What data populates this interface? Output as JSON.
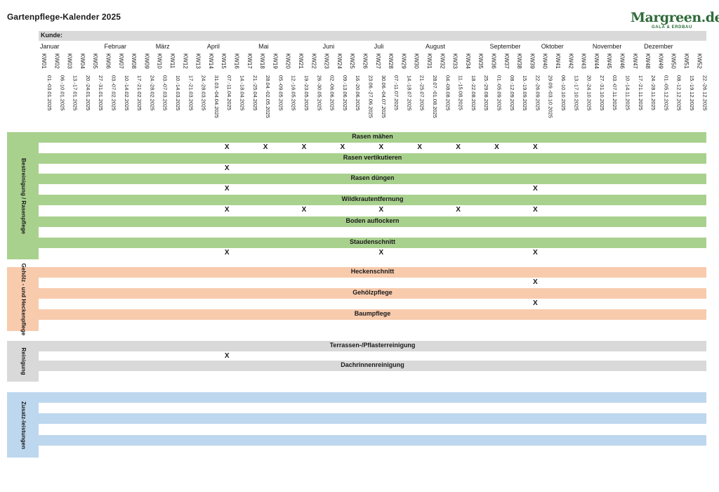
{
  "title": "Gartenpflege-Kalender 2025",
  "logo": {
    "brand": "Margreen.de",
    "tagline": "GALA & ERDBAU",
    "color": "#2f6b3a"
  },
  "kunde_label": "Kunde:",
  "months": [
    "Januar",
    "Februar",
    "März",
    "April",
    "Mai",
    "Juni",
    "Juli",
    "August",
    "September",
    "Oktober",
    "November",
    "Dezember"
  ],
  "weeks": [
    {
      "kw": "KW01",
      "dates": "01.-03.01.2025"
    },
    {
      "kw": "KW02",
      "dates": "06.-10.01.2025"
    },
    {
      "kw": "KW03",
      "dates": "13.-17.01.2025"
    },
    {
      "kw": "KW04",
      "dates": "20.-24.01.2025"
    },
    {
      "kw": "KW05",
      "dates": "27.-31.01.2025"
    },
    {
      "kw": "KW06",
      "dates": "03.-07.02.2025"
    },
    {
      "kw": "KW07",
      "dates": "10.-14.02.2025"
    },
    {
      "kw": "KW08",
      "dates": "17.-21.02.2025"
    },
    {
      "kw": "KW09",
      "dates": "24.-28.02.2025"
    },
    {
      "kw": "KW10",
      "dates": "03.-07.03.2025"
    },
    {
      "kw": "KW11",
      "dates": "10.-14.03.2025"
    },
    {
      "kw": "KW12",
      "dates": "17.-21.03.2025"
    },
    {
      "kw": "KW13",
      "dates": "24.-28.03.2025"
    },
    {
      "kw": "KW14",
      "dates": "31.03.-04.04.2025"
    },
    {
      "kw": "KW15",
      "dates": "07.-11.04.2025"
    },
    {
      "kw": "KW16",
      "dates": "14.-18.04.2025"
    },
    {
      "kw": "KW17",
      "dates": "21.-25.04.2025"
    },
    {
      "kw": "KW18",
      "dates": "28.04.-02.05.2025"
    },
    {
      "kw": "KW19",
      "dates": "05.-09.05.2025"
    },
    {
      "kw": "KW20",
      "dates": "12.-16.05.2025"
    },
    {
      "kw": "KW21",
      "dates": "19.-23.05.2025"
    },
    {
      "kw": "KW22",
      "dates": "26.-30.05.2025"
    },
    {
      "kw": "KW23",
      "dates": "02.-06.06.2025"
    },
    {
      "kw": "KW24",
      "dates": "09.-13.06.2025"
    },
    {
      "kw": "KW25",
      "dates": "16.-20.06.2025"
    },
    {
      "kw": "KW26",
      "dates": "23.06.-27.06.2025"
    },
    {
      "kw": "KW27",
      "dates": "30.06.-04.07.2025"
    },
    {
      "kw": "KW28",
      "dates": "07.-11.07.2025"
    },
    {
      "kw": "KW29",
      "dates": "14.-18.07.2025"
    },
    {
      "kw": "KW30",
      "dates": "21.-25.07.2025"
    },
    {
      "kw": "KW31",
      "dates": "28.07.-01.08.2025"
    },
    {
      "kw": "KW32",
      "dates": "04.-08.08.2025"
    },
    {
      "kw": "KW33",
      "dates": "11.-15.08.2025"
    },
    {
      "kw": "KW34",
      "dates": "18.-22.08.2025"
    },
    {
      "kw": "KW35",
      "dates": "25.-29.08.2025"
    },
    {
      "kw": "KW36",
      "dates": "01.-05.09.2025"
    },
    {
      "kw": "KW37",
      "dates": "08.-12.09.2025"
    },
    {
      "kw": "KW38",
      "dates": "15.-19.09.2025"
    },
    {
      "kw": "KW39",
      "dates": "22.-26.09.2025"
    },
    {
      "kw": "KW40",
      "dates": "29.09.-03.10.2025"
    },
    {
      "kw": "KW41",
      "dates": "06.-10.10.2025"
    },
    {
      "kw": "KW42",
      "dates": "13.-17.10.2025"
    },
    {
      "kw": "KW43",
      "dates": "20.-24.10.2025"
    },
    {
      "kw": "KW44",
      "dates": "27.-31.10.2025"
    },
    {
      "kw": "KW45",
      "dates": "03.-07.11.2025"
    },
    {
      "kw": "KW46",
      "dates": "10.-14.11.2025"
    },
    {
      "kw": "KW47",
      "dates": "17.-21.11.2025"
    },
    {
      "kw": "KW48",
      "dates": "24.-28.11.2025"
    },
    {
      "kw": "KW49",
      "dates": "01.-05.12.2025"
    },
    {
      "kw": "KW50",
      "dates": "08.-12.12.2025"
    },
    {
      "kw": "KW51",
      "dates": "15.-19.12.2025"
    },
    {
      "kw": "KW52",
      "dates": "22.-26.12.2025"
    }
  ],
  "mark_symbol": "X",
  "sections": [
    {
      "label": "Bestreinigung / Rasenpflege",
      "color": "#a9d18e",
      "tasks": [
        {
          "name": "Rasen mähen",
          "weeks": [
            "KW15",
            "KW18",
            "KW21",
            "KW24",
            "KW27",
            "KW30",
            "KW33",
            "KW36",
            "KW39"
          ]
        },
        {
          "name": "Rasen vertikutieren",
          "weeks": [
            "KW15"
          ]
        },
        {
          "name": "Rasen düngen",
          "weeks": [
            "KW15",
            "KW39"
          ]
        },
        {
          "name": "Wildkrautentfernung",
          "weeks": [
            "KW15",
            "KW21",
            "KW27",
            "KW33",
            "KW39"
          ]
        },
        {
          "name": "Boden auflockern",
          "weeks": []
        },
        {
          "name": "Staudenschnitt",
          "weeks": [
            "KW15",
            "KW27",
            "KW39"
          ]
        }
      ]
    },
    {
      "label": "Gehölz - und Heckenpflege",
      "color": "#f8cbad",
      "tasks": [
        {
          "name": "Heckenschnitt",
          "weeks": [
            "KW39"
          ]
        },
        {
          "name": "Gehölzpflege",
          "weeks": [
            "KW39"
          ]
        },
        {
          "name": "Baumpflege",
          "weeks": []
        }
      ]
    },
    {
      "label": "Reinigung",
      "color": "#d9d9d9",
      "tasks": [
        {
          "name": "Terrassen-/Pflasterreinigung",
          "weeks": [
            "KW15"
          ]
        },
        {
          "name": "Dachrinnenreinigung",
          "weeks": []
        }
      ]
    },
    {
      "label": "Zusatz-leistungen",
      "color": "#bdd7ee",
      "tasks": [
        {
          "name": "",
          "weeks": []
        },
        {
          "name": "",
          "weeks": []
        },
        {
          "name": "",
          "weeks": []
        }
      ]
    }
  ]
}
